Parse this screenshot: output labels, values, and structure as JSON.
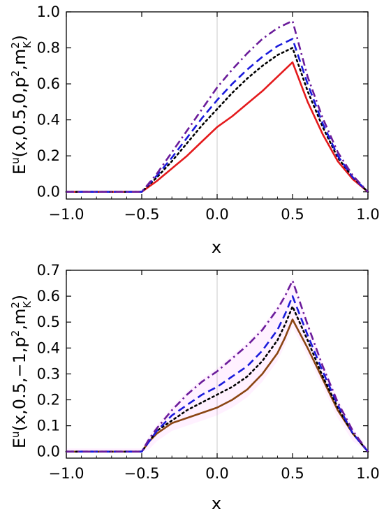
{
  "chart_data": [
    {
      "type": "line",
      "title": "",
      "xlabel": "x",
      "ylabel_parts": {
        "main": "E",
        "sup": "u",
        "args": "(x,0.5,0,p",
        "p_exp": "2",
        "sep": ",m",
        "m_exp": "2",
        "m_sub": "K",
        "close": ")"
      },
      "xlim": [
        -1.0,
        1.0
      ],
      "ylim": [
        -0.04,
        1.0
      ],
      "xticks": [
        -1.0,
        -0.5,
        0.0,
        0.5,
        1.0
      ],
      "xtick_labels": [
        "−1.0",
        "−0.5",
        "0.0",
        "0.5",
        "1.0"
      ],
      "yticks": [
        0.0,
        0.2,
        0.4,
        0.6,
        0.8,
        1.0
      ],
      "ytick_labels": [
        "0.0",
        "0.2",
        "0.4",
        "0.6",
        "0.8",
        "1.0"
      ],
      "grid": false,
      "series": [
        {
          "color": "#e41a1c",
          "dash": "solid",
          "x": [
            -1.0,
            -0.5,
            -0.4,
            -0.3,
            -0.2,
            -0.1,
            0.0,
            0.1,
            0.2,
            0.3,
            0.4,
            0.5,
            0.6,
            0.7,
            0.8,
            0.9,
            1.0
          ],
          "y": [
            0.0,
            0.0,
            0.06,
            0.13,
            0.2,
            0.28,
            0.36,
            0.42,
            0.49,
            0.56,
            0.64,
            0.72,
            0.5,
            0.32,
            0.17,
            0.07,
            0.0
          ]
        },
        {
          "color": "#000000",
          "dash": "dotted",
          "x": [
            -1.0,
            -0.5,
            -0.4,
            -0.3,
            -0.2,
            -0.1,
            0.0,
            0.1,
            0.2,
            0.3,
            0.4,
            0.5,
            0.6,
            0.7,
            0.8,
            0.9,
            1.0
          ],
          "y": [
            0.0,
            0.0,
            0.08,
            0.17,
            0.27,
            0.37,
            0.46,
            0.55,
            0.63,
            0.7,
            0.76,
            0.8,
            0.56,
            0.36,
            0.19,
            0.08,
            0.0
          ]
        },
        {
          "color": "#1a1adc",
          "dash": "dashed",
          "x": [
            -1.0,
            -0.5,
            -0.4,
            -0.3,
            -0.2,
            -0.1,
            0.0,
            0.1,
            0.2,
            0.3,
            0.4,
            0.5,
            0.6,
            0.7,
            0.8,
            0.9,
            1.0
          ],
          "y": [
            0.0,
            0.0,
            0.09,
            0.19,
            0.3,
            0.41,
            0.51,
            0.6,
            0.68,
            0.75,
            0.81,
            0.85,
            0.6,
            0.38,
            0.2,
            0.08,
            0.0
          ]
        },
        {
          "color": "#6a1b9a",
          "dash": "dashdot",
          "x": [
            -1.0,
            -0.5,
            -0.4,
            -0.3,
            -0.2,
            -0.1,
            0.0,
            0.1,
            0.2,
            0.3,
            0.4,
            0.5,
            0.6,
            0.7,
            0.8,
            0.9,
            1.0
          ],
          "y": [
            0.0,
            0.0,
            0.1,
            0.22,
            0.34,
            0.46,
            0.58,
            0.68,
            0.77,
            0.85,
            0.91,
            0.95,
            0.64,
            0.41,
            0.22,
            0.09,
            0.0
          ]
        }
      ]
    },
    {
      "type": "line",
      "title": "",
      "xlabel": "x",
      "ylabel_parts": {
        "main": "E",
        "sup": "u",
        "args": "(x,0.5,−1,p",
        "p_exp": "2",
        "sep": ",m",
        "m_exp": "2",
        "m_sub": "K",
        "close": ")"
      },
      "xlim": [
        -1.0,
        1.0
      ],
      "ylim": [
        -0.025,
        0.7
      ],
      "xticks": [
        -1.0,
        -0.5,
        0.0,
        0.5,
        1.0
      ],
      "xtick_labels": [
        "−1.0",
        "−0.5",
        "0.0",
        "0.5",
        "1.0"
      ],
      "yticks": [
        0.0,
        0.1,
        0.2,
        0.3,
        0.4,
        0.5,
        0.6,
        0.7
      ],
      "ytick_labels": [
        "0.0",
        "0.1",
        "0.2",
        "0.3",
        "0.4",
        "0.5",
        "0.6",
        "0.7"
      ],
      "grid": false,
      "band_color": "#ff66ff",
      "series": [
        {
          "color": "#8b4513",
          "dash": "solid",
          "x": [
            -1.0,
            -0.5,
            -0.45,
            -0.4,
            -0.3,
            -0.2,
            -0.1,
            0.0,
            0.1,
            0.2,
            0.3,
            0.4,
            0.45,
            0.5,
            0.6,
            0.7,
            0.8,
            0.9,
            1.0
          ],
          "y": [
            0.0,
            0.0,
            0.04,
            0.07,
            0.11,
            0.13,
            0.15,
            0.17,
            0.2,
            0.24,
            0.3,
            0.38,
            0.44,
            0.51,
            0.4,
            0.28,
            0.16,
            0.07,
            0.0
          ]
        },
        {
          "color": "#000000",
          "dash": "dotted",
          "x": [
            -1.0,
            -0.5,
            -0.45,
            -0.4,
            -0.3,
            -0.2,
            -0.1,
            0.0,
            0.1,
            0.2,
            0.3,
            0.4,
            0.45,
            0.5,
            0.6,
            0.7,
            0.8,
            0.9,
            1.0
          ],
          "y": [
            0.0,
            0.0,
            0.04,
            0.08,
            0.12,
            0.16,
            0.19,
            0.22,
            0.25,
            0.29,
            0.35,
            0.43,
            0.49,
            0.56,
            0.43,
            0.29,
            0.17,
            0.07,
            0.0
          ]
        },
        {
          "color": "#1a1adc",
          "dash": "dashed",
          "x": [
            -1.0,
            -0.5,
            -0.45,
            -0.4,
            -0.3,
            -0.2,
            -0.1,
            0.0,
            0.1,
            0.2,
            0.3,
            0.4,
            0.45,
            0.5,
            0.6,
            0.7,
            0.8,
            0.9,
            1.0
          ],
          "y": [
            0.0,
            0.0,
            0.04,
            0.08,
            0.14,
            0.18,
            0.22,
            0.25,
            0.29,
            0.33,
            0.39,
            0.47,
            0.53,
            0.6,
            0.45,
            0.31,
            0.18,
            0.07,
            0.0
          ]
        },
        {
          "color": "#6a1b9a",
          "dash": "dashdot",
          "x": [
            -1.0,
            -0.5,
            -0.45,
            -0.4,
            -0.3,
            -0.2,
            -0.1,
            0.0,
            0.1,
            0.2,
            0.3,
            0.4,
            0.45,
            0.5,
            0.6,
            0.7,
            0.8,
            0.9,
            1.0
          ],
          "y": [
            0.0,
            0.0,
            0.05,
            0.09,
            0.16,
            0.22,
            0.27,
            0.31,
            0.36,
            0.41,
            0.47,
            0.55,
            0.6,
            0.66,
            0.49,
            0.33,
            0.19,
            0.08,
            0.0
          ]
        }
      ]
    }
  ]
}
